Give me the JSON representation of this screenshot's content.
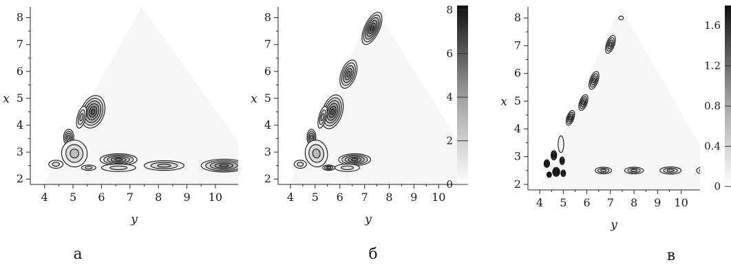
{
  "chart_data": [
    {
      "type": "heatmap",
      "panel_label": "а",
      "xlabel": "y",
      "ylabel": "x",
      "xlim": [
        3.5,
        10.8
      ],
      "ylim": [
        1.8,
        8.4
      ],
      "xticks": [
        "4",
        "5",
        "6",
        "7",
        "8",
        "9",
        "10"
      ],
      "yticks": [
        "2",
        "3",
        "4",
        "5",
        "6",
        "7",
        "8"
      ],
      "colorbar": null,
      "peaks": [
        {
          "x": 5.7,
          "y": 4.5,
          "rx": 0.4,
          "ry": 0.62,
          "rot": 18,
          "v": 6
        },
        {
          "x": 5.3,
          "y": 4.3,
          "rx": 0.15,
          "ry": 0.42,
          "rot": 15,
          "v": 3
        },
        {
          "x": 4.85,
          "y": 3.55,
          "rx": 0.18,
          "ry": 0.3,
          "rot": 0,
          "v": 4
        },
        {
          "x": 5.05,
          "y": 2.95,
          "rx": 0.45,
          "ry": 0.5,
          "rot": -10,
          "v": 3
        },
        {
          "x": 6.6,
          "y": 2.72,
          "rx": 0.65,
          "ry": 0.22,
          "rot": 0,
          "v": 5
        },
        {
          "x": 6.6,
          "y": 2.42,
          "rx": 0.6,
          "ry": 0.14,
          "rot": 0,
          "v": 2
        },
        {
          "x": 5.55,
          "y": 2.42,
          "rx": 0.25,
          "ry": 0.1,
          "rot": 0,
          "v": 2
        },
        {
          "x": 4.4,
          "y": 2.55,
          "rx": 0.25,
          "ry": 0.15,
          "rot": 0,
          "v": 2
        },
        {
          "x": 8.2,
          "y": 2.5,
          "rx": 0.7,
          "ry": 0.18,
          "rot": 0,
          "v": 3
        },
        {
          "x": 10.3,
          "y": 2.5,
          "rx": 0.8,
          "ry": 0.24,
          "rot": 0,
          "v": 5
        }
      ]
    },
    {
      "type": "heatmap",
      "panel_label": "б",
      "xlabel": "y",
      "ylabel": "x",
      "xlim": [
        3.5,
        10.8
      ],
      "ylim": [
        1.8,
        8.4
      ],
      "xticks": [
        "4",
        "5",
        "6",
        "7",
        "8",
        "9",
        "10"
      ],
      "yticks": [
        "2",
        "3",
        "4",
        "5",
        "6",
        "7",
        "8"
      ],
      "colorbar": {
        "min": 0,
        "max": 8.2,
        "ticks": [
          "0",
          "2",
          "4",
          "6",
          "8"
        ]
      },
      "peaks": [
        {
          "x": 7.3,
          "y": 7.6,
          "rx": 0.3,
          "ry": 0.65,
          "rot": 25,
          "v": 6
        },
        {
          "x": 6.35,
          "y": 5.9,
          "rx": 0.3,
          "ry": 0.55,
          "rot": 20,
          "v": 5
        },
        {
          "x": 5.7,
          "y": 4.5,
          "rx": 0.4,
          "ry": 0.65,
          "rot": 18,
          "v": 6
        },
        {
          "x": 5.3,
          "y": 4.3,
          "rx": 0.15,
          "ry": 0.42,
          "rot": 15,
          "v": 3
        },
        {
          "x": 4.85,
          "y": 3.55,
          "rx": 0.18,
          "ry": 0.3,
          "rot": 0,
          "v": 4
        },
        {
          "x": 5.05,
          "y": 2.95,
          "rx": 0.45,
          "ry": 0.5,
          "rot": -10,
          "v": 3
        },
        {
          "x": 6.6,
          "y": 2.72,
          "rx": 0.65,
          "ry": 0.22,
          "rot": 0,
          "v": 5
        },
        {
          "x": 6.3,
          "y": 2.42,
          "rx": 0.5,
          "ry": 0.14,
          "rot": 0,
          "v": 2
        },
        {
          "x": 5.55,
          "y": 2.42,
          "rx": 0.25,
          "ry": 0.1,
          "rot": 0,
          "v": 3
        },
        {
          "x": 4.4,
          "y": 2.55,
          "rx": 0.25,
          "ry": 0.15,
          "rot": 0,
          "v": 2
        }
      ]
    },
    {
      "type": "heatmap",
      "panel_label": "в",
      "xlabel": "y",
      "ylabel": "x",
      "xlim": [
        3.5,
        10.8
      ],
      "ylim": [
        1.8,
        8.4
      ],
      "xticks": [
        "4",
        "5",
        "6",
        "7",
        "8",
        "9",
        "10"
      ],
      "yticks": [
        "2",
        "3",
        "4",
        "5",
        "6",
        "7",
        "8"
      ],
      "colorbar": {
        "min": 0,
        "max": 1.8,
        "ticks": [
          "0",
          "0.4",
          "0.8",
          "1.2",
          "1.6"
        ]
      },
      "peaks": [
        {
          "x": 7.0,
          "y": 7.05,
          "rx": 0.17,
          "ry": 0.34,
          "rot": 20,
          "v": 4
        },
        {
          "x": 6.3,
          "y": 5.75,
          "rx": 0.17,
          "ry": 0.34,
          "rot": 20,
          "v": 4
        },
        {
          "x": 5.85,
          "y": 4.95,
          "rx": 0.16,
          "ry": 0.3,
          "rot": 20,
          "v": 4
        },
        {
          "x": 5.3,
          "y": 4.4,
          "rx": 0.15,
          "ry": 0.28,
          "rot": 20,
          "v": 4
        },
        {
          "x": 4.9,
          "y": 3.45,
          "rx": 0.12,
          "ry": 0.3,
          "rot": 0,
          "v": 1
        },
        {
          "x": 4.6,
          "y": 3.05,
          "rx": 0.12,
          "ry": 0.17,
          "rot": 0,
          "v": 5
        },
        {
          "x": 4.95,
          "y": 2.85,
          "rx": 0.1,
          "ry": 0.14,
          "rot": 0,
          "v": 4
        },
        {
          "x": 4.3,
          "y": 2.75,
          "rx": 0.12,
          "ry": 0.14,
          "rot": 0,
          "v": 5
        },
        {
          "x": 4.7,
          "y": 2.45,
          "rx": 0.15,
          "ry": 0.16,
          "rot": 0,
          "v": 6
        },
        {
          "x": 4.4,
          "y": 2.35,
          "rx": 0.1,
          "ry": 0.1,
          "rot": 0,
          "v": 4
        },
        {
          "x": 5.0,
          "y": 2.4,
          "rx": 0.1,
          "ry": 0.12,
          "rot": 0,
          "v": 4
        },
        {
          "x": 6.7,
          "y": 2.5,
          "rx": 0.35,
          "ry": 0.12,
          "rot": 0,
          "v": 3
        },
        {
          "x": 8.0,
          "y": 2.5,
          "rx": 0.4,
          "ry": 0.12,
          "rot": 0,
          "v": 3
        },
        {
          "x": 9.55,
          "y": 2.5,
          "rx": 0.45,
          "ry": 0.13,
          "rot": 0,
          "v": 3
        },
        {
          "x": 10.9,
          "y": 2.5,
          "rx": 0.25,
          "ry": 0.12,
          "rot": 0,
          "v": 2
        },
        {
          "x": 7.45,
          "y": 8.0,
          "rx": 0.1,
          "ry": 0.07,
          "rot": 0,
          "v": 1
        }
      ]
    }
  ]
}
